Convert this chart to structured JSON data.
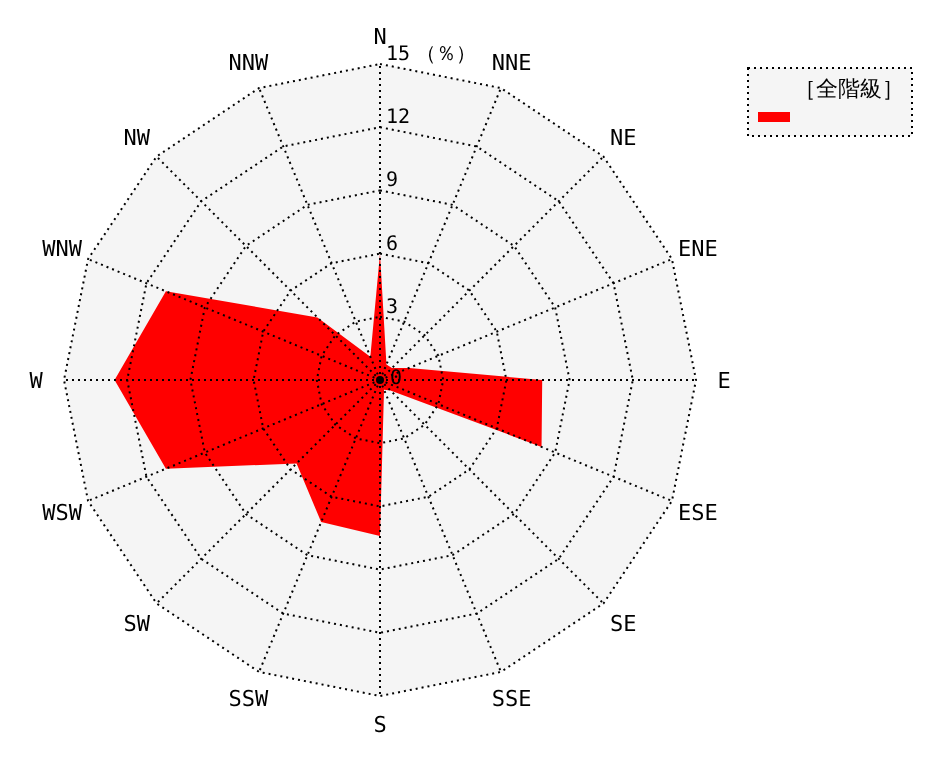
{
  "chart_data": {
    "type": "radar",
    "ylabel": "（％）",
    "legend": "top right",
    "grid": true,
    "categories": [
      "N",
      "NNE",
      "NE",
      "ENE",
      "E",
      "ESE",
      "SE",
      "SSE",
      "S",
      "SSW",
      "SW",
      "WSW",
      "W",
      "WNW",
      "NW",
      "NNW"
    ],
    "ylim": [
      0,
      15
    ],
    "yticks": [
      0,
      3,
      6,
      9,
      12,
      15
    ],
    "series": [
      {
        "name": "［全階級］",
        "color": "#ff0000",
        "values": [
          6.0,
          0.8,
          0.8,
          1.5,
          7.7,
          8.3,
          0.7,
          0.5,
          7.4,
          7.3,
          5.6,
          11.0,
          12.6,
          11.0,
          4.2,
          1.2
        ]
      }
    ]
  }
}
